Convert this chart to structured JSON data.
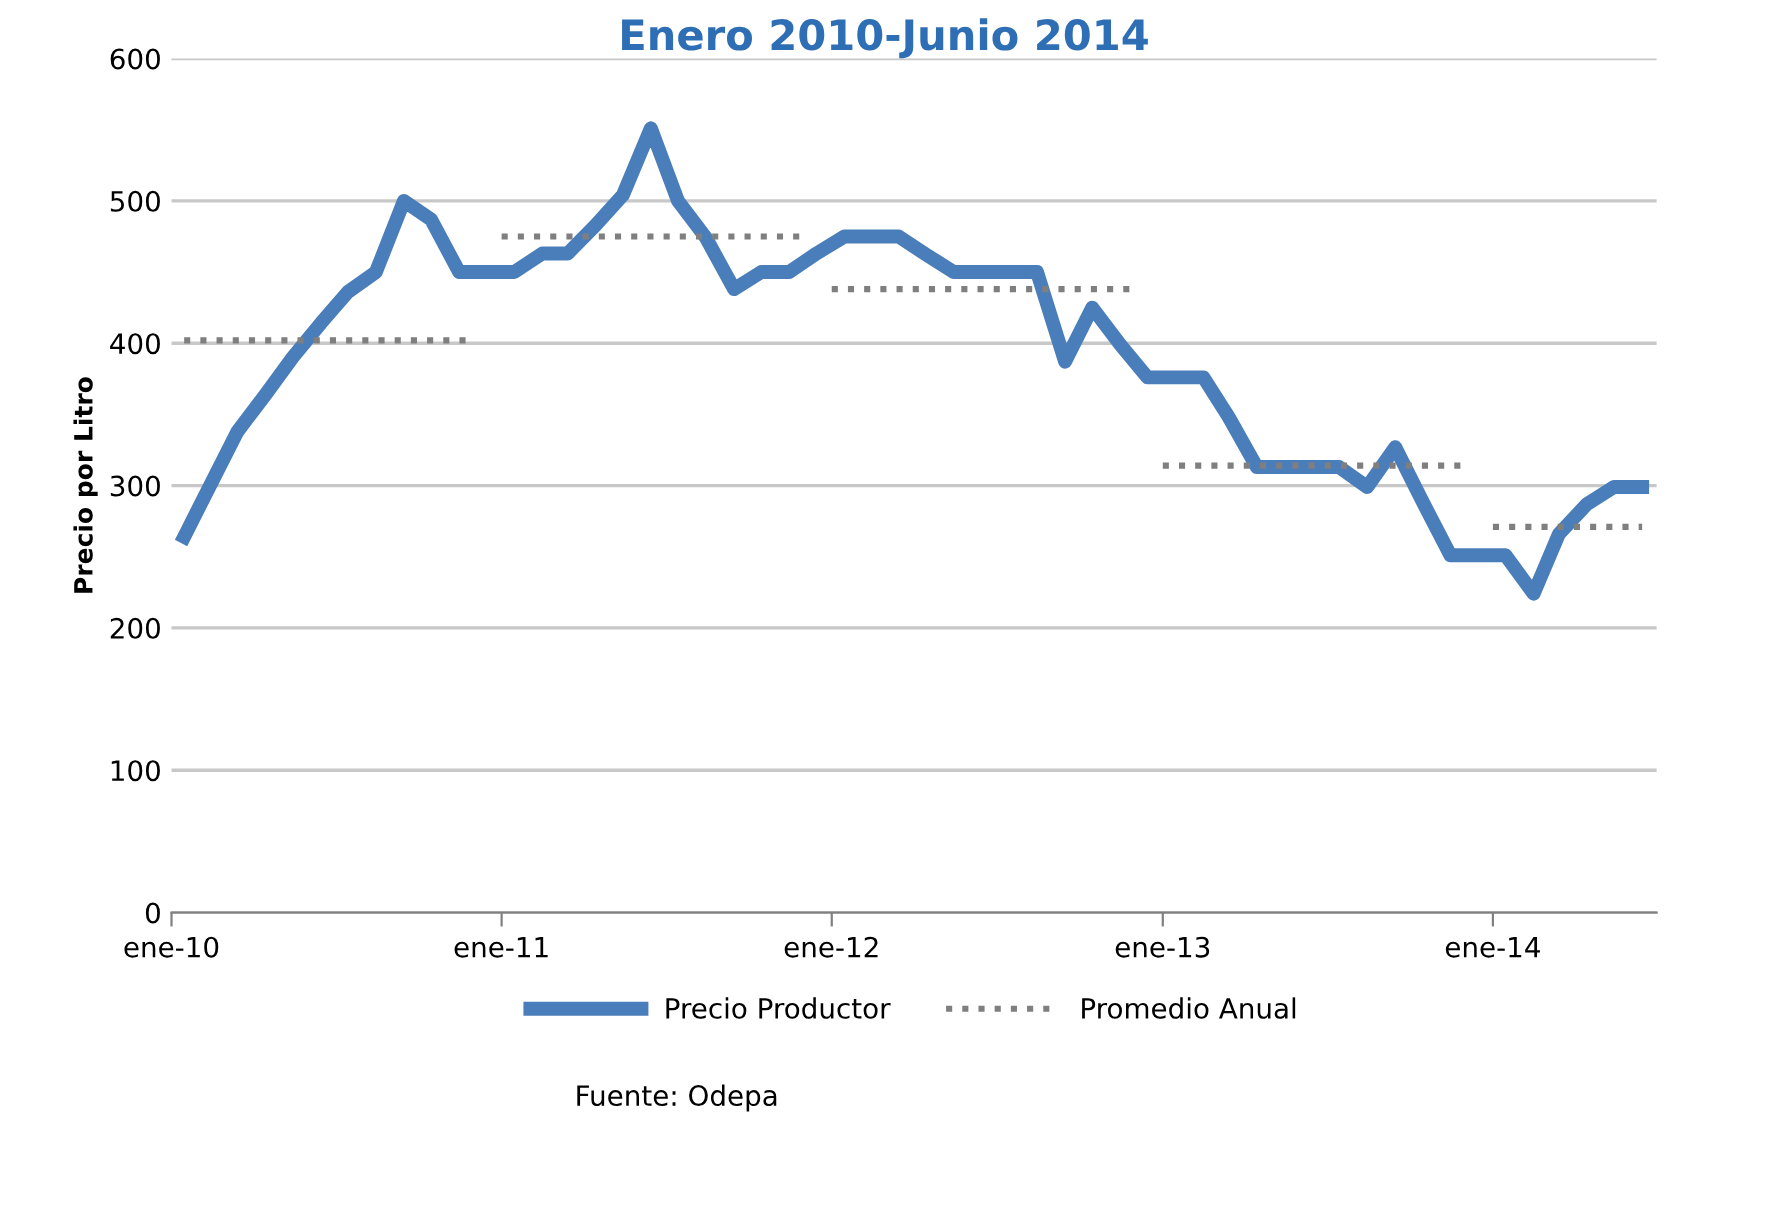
{
  "chart_data": {
    "type": "line",
    "title": "Enero 2010-Junio 2014",
    "ylabel": "Precio por Litro",
    "annotations": [
      "Fuente: Odepa"
    ],
    "x": [
      "2010-01-15",
      "2010-02-15",
      "2010-03-15",
      "2010-04-15",
      "2010-05-15",
      "2010-06-15",
      "2010-07-15",
      "2010-08-15",
      "2010-09-15",
      "2010-10-15",
      "2010-11-15",
      "2010-12-15",
      "2011-01-15",
      "2011-02-15",
      "2011-03-15",
      "2011-04-15",
      "2011-05-15",
      "2011-06-15",
      "2011-07-15",
      "2011-08-15",
      "2011-09-15",
      "2011-10-15",
      "2011-11-15",
      "2011-12-15",
      "2012-01-15",
      "2012-02-15",
      "2012-03-15",
      "2012-04-15",
      "2012-05-15",
      "2012-06-15",
      "2012-07-15",
      "2012-08-15",
      "2012-09-15",
      "2012-10-15",
      "2012-11-15",
      "2012-12-15",
      "2013-01-15",
      "2013-02-15",
      "2013-03-15",
      "2013-04-15",
      "2013-05-15",
      "2013-06-15",
      "2013-07-15",
      "2013-08-15",
      "2013-09-15",
      "2013-10-15",
      "2013-11-15",
      "2013-12-15",
      "2014-01-15",
      "2014-02-15",
      "2014-03-15",
      "2014-04-15",
      "2014-05-15",
      "2014-06-15"
    ],
    "series": [
      {
        "name": "Precio Productor",
        "color": "#4a7ebb",
        "line_style": "solid",
        "values": [
          264,
          303,
          338,
          364,
          390,
          414,
          436,
          450,
          500,
          487,
          450,
          450,
          450,
          463,
          463,
          483,
          504,
          551,
          500,
          474,
          438,
          450,
          450,
          463,
          475,
          475,
          475,
          462,
          450,
          450,
          450,
          450,
          387,
          425,
          399,
          376,
          376,
          376,
          348,
          313,
          313,
          313,
          313,
          299,
          327,
          289,
          251,
          251,
          251,
          224,
          266,
          287,
          299,
          299
        ]
      },
      {
        "name": "Promedio Anual",
        "color": "#7f7f7f",
        "line_style": "dotted",
        "x": [
          "2010-01-15",
          "2010-12-01"
        ],
        "values": [
          402,
          402
        ]
      },
      {
        "color": "#7f7f7f",
        "line_style": "dotted",
        "x": [
          "2011-01-01",
          "2011-12-01"
        ],
        "values": [
          475,
          475
        ]
      },
      {
        "color": "#7f7f7f",
        "line_style": "dotted",
        "x": [
          "2012-01-01",
          "2012-12-01"
        ],
        "values": [
          438,
          438
        ]
      },
      {
        "color": "#7f7f7f",
        "line_style": "dotted",
        "x": [
          "2013-01-01",
          "2013-12-01"
        ],
        "values": [
          314,
          314
        ]
      },
      {
        "color": "#7f7f7f",
        "line_style": "dotted",
        "x": [
          "2014-01-01",
          "2014-06-15"
        ],
        "values": [
          271,
          271
        ]
      }
    ],
    "xlim": [
      "2010-01-01",
      "2014-07-01"
    ],
    "xticks": [
      {
        "value": "2010-01-01",
        "label": "ene-10"
      },
      {
        "value": "2011-01-01",
        "label": "ene-11"
      },
      {
        "value": "2012-01-01",
        "label": "ene-12"
      },
      {
        "value": "2013-01-01",
        "label": "ene-13"
      },
      {
        "value": "2014-01-01",
        "label": "ene-14"
      }
    ],
    "ylim": [
      0,
      600
    ],
    "yticks": [
      0,
      100,
      200,
      300,
      400,
      500,
      600
    ],
    "grid": "y",
    "legend": "bottom",
    "marker": "none"
  }
}
